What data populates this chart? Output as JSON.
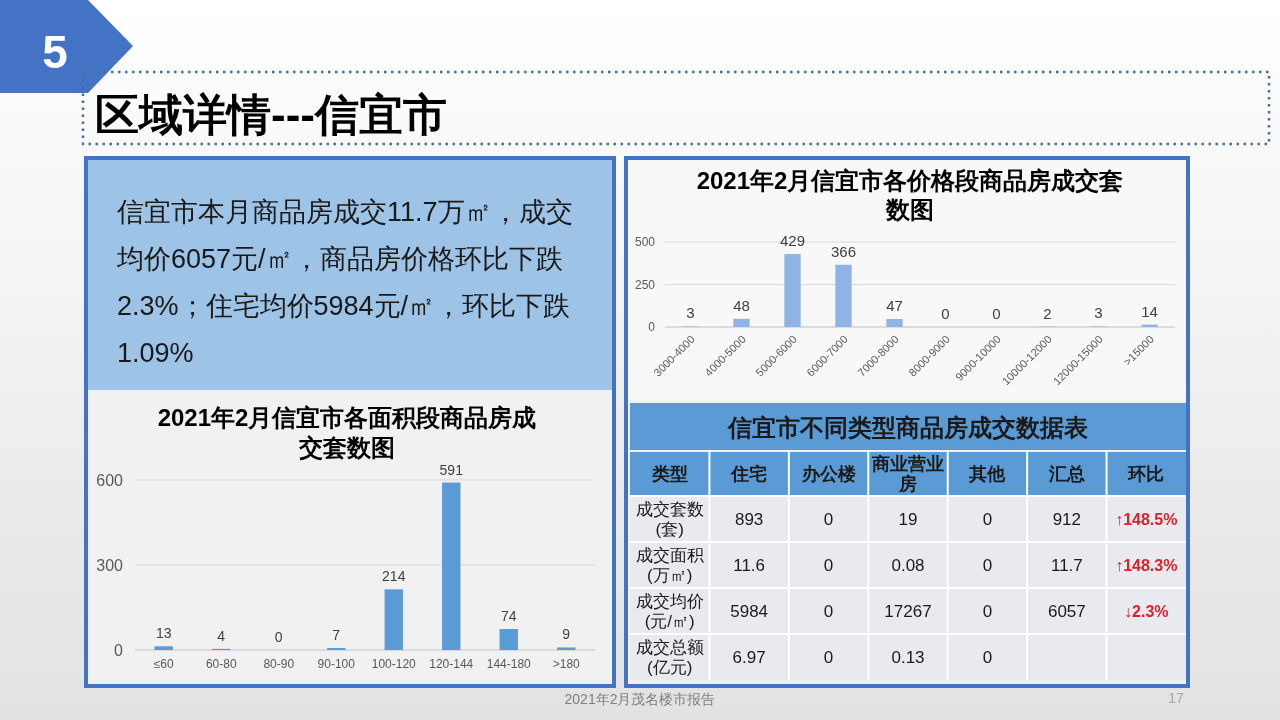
{
  "chart_data": [
    {
      "type": "other",
      "title": "区域详情---信宜市",
      "annotations": [
        "5",
        "2021年2月茂名楼市报告",
        "17"
      ]
    },
    {
      "type": "other",
      "annotations": [
        "信宜市本月商品房成交11.7万㎡，成交均价6057元/㎡，商品房价格环比下跌2.3%；住宅均价5984元/㎡，环比下跌1.09%"
      ]
    },
    {
      "type": "bar",
      "title": "2021年2月信宜市各价格段商品房成交套数图",
      "categories": [
        "3000-4000",
        "4000-5000",
        "5000-6000",
        "6000-7000",
        "7000-8000",
        "8000-9000",
        "9000-10000",
        "10000-12000",
        "12000-15000",
        ">15000"
      ],
      "values": [
        3,
        48,
        429,
        366,
        47,
        0,
        0,
        2,
        3,
        14
      ],
      "color": "#8fb4e3",
      "ylim": [
        0,
        500
      ],
      "yticks": [
        0,
        250,
        500
      ],
      "grid": "y",
      "data_labels": true
    },
    {
      "type": "bar",
      "title": "2021年2月信宜市各面积段商品房成交套数图",
      "categories": [
        "≤60",
        "60-80",
        "80-90",
        "90-100",
        "100-120",
        "120-144",
        "144-180",
        ">180"
      ],
      "values": [
        13,
        4,
        0,
        7,
        214,
        591,
        74,
        9
      ],
      "color": "#5b9bd5",
      "ylim": [
        0,
        600
      ],
      "yticks": [
        0,
        300,
        600
      ],
      "grid": "y",
      "data_labels": true
    },
    {
      "type": "other",
      "title": "信宜市不同类型商品房成交数据表",
      "ylabel": "类型",
      "categories": [
        "住宅",
        "办公楼",
        "商业营业房",
        "其他",
        "汇总",
        "环比"
      ],
      "y_categories": [
        "成交套数(套)",
        "成交面积(万㎡)",
        "成交均价(元/㎡)",
        "成交总额(亿元)"
      ],
      "cell_labels": [
        [
          "893",
          "0",
          "19",
          "0",
          "912",
          "↑148.5%"
        ],
        [
          "11.6",
          "0",
          "0.08",
          "0",
          "11.7",
          "↑148.3%"
        ],
        [
          "5984",
          "0",
          "17267",
          "0",
          "6057",
          "↓2.3%"
        ],
        [
          "6.97",
          "0",
          "0.13",
          "0",
          null,
          null
        ]
      ]
    }
  ]
}
